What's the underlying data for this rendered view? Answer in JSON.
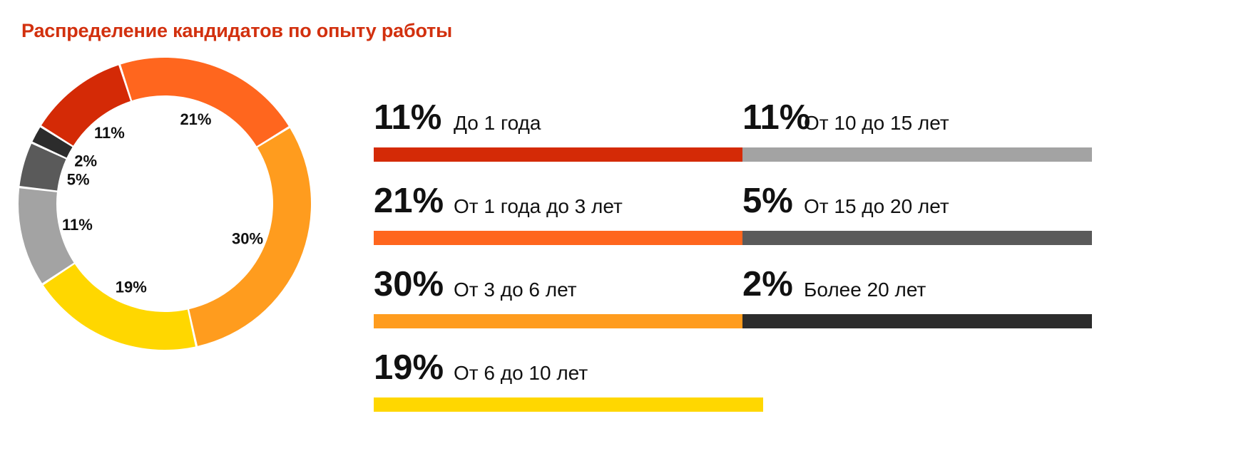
{
  "chart_data": {
    "type": "pie",
    "title": "Распределение кандидатов по опыту работы",
    "slices": [
      {
        "label": "До 1 года",
        "value": 11,
        "display": "11%",
        "color": "#d42a06"
      },
      {
        "label": "От 1 года до 3 лет",
        "value": 21,
        "display": "21%",
        "color": "#ff661e"
      },
      {
        "label": "От 3 до 6 лет",
        "value": 30,
        "display": "30%",
        "color": "#ff9c1e"
      },
      {
        "label": "От 6 до 10 лет",
        "value": 19,
        "display": "19%",
        "color": "#ffd700"
      },
      {
        "label": "От 10 до 15 лет",
        "value": 11,
        "display": "11%",
        "color": "#a3a3a3"
      },
      {
        "label": "От 15 до 20 лет",
        "value": 5,
        "display": "5%",
        "color": "#5a5a5a"
      },
      {
        "label": "Более 20 лет",
        "value": 2,
        "display": "2%",
        "color": "#2c2c2c"
      }
    ],
    "legend_placement": "right"
  }
}
